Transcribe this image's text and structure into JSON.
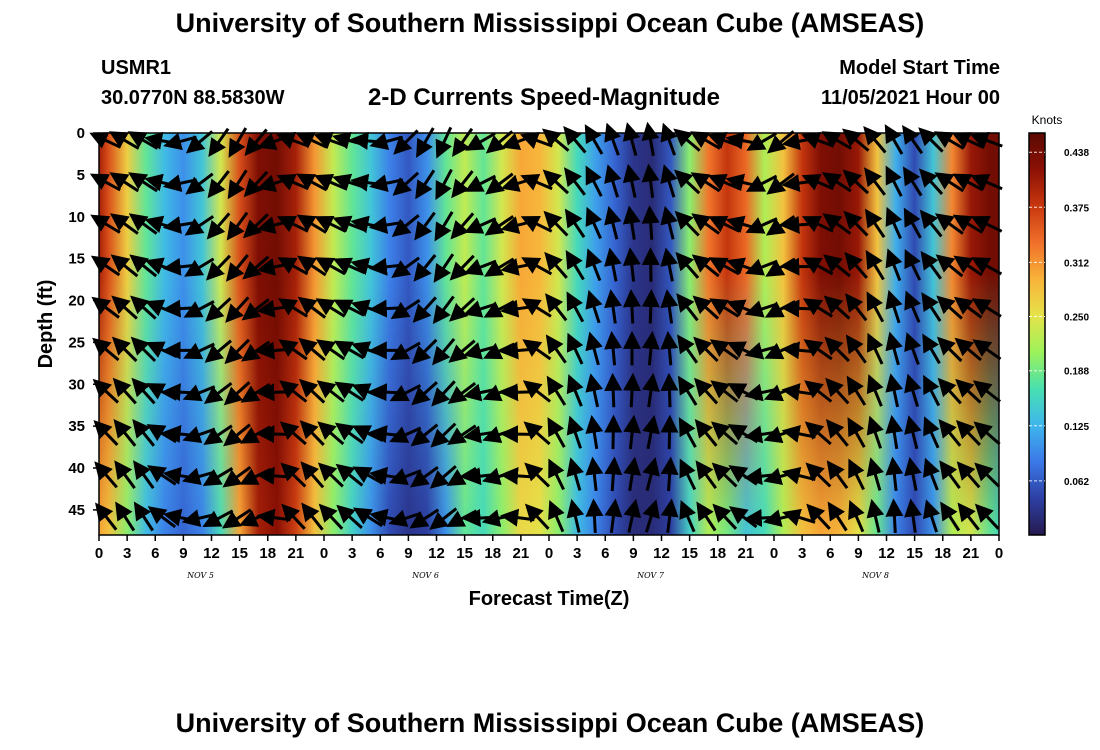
{
  "header": {
    "title": "University of Southern Mississippi Ocean Cube (AMSEAS)",
    "station_id": "USMR1",
    "coords": "30.0770N  88.5830W",
    "chart_title": "2-D Currents Speed-Magnitude",
    "model_start_label": "Model Start Time",
    "model_start_value": "11/05/2021 Hour 00"
  },
  "footer": {
    "title": "University of Southern Mississippi Ocean Cube (AMSEAS)"
  },
  "chart_data": {
    "type": "heatmap",
    "title": "2-D Currents Speed-Magnitude",
    "xlabel": "Forecast Time(Z)",
    "ylabel": "Depth (ft)",
    "x_tick_labels": [
      "0",
      "3",
      "6",
      "9",
      "12",
      "15",
      "18",
      "21",
      "0",
      "3",
      "6",
      "9",
      "12",
      "15",
      "18",
      "21",
      "0",
      "3",
      "6",
      "9",
      "12",
      "15",
      "18",
      "21",
      "0",
      "3",
      "6",
      "9",
      "12",
      "15",
      "18",
      "21",
      "0"
    ],
    "day_labels": [
      "NOV 5",
      "NOV 6",
      "NOV 7",
      "NOV 8"
    ],
    "y_tick_labels": [
      "0",
      "5",
      "10",
      "15",
      "20",
      "25",
      "30",
      "35",
      "40",
      "45"
    ],
    "y_ticks": [
      0,
      5,
      10,
      15,
      20,
      25,
      30,
      35,
      40,
      45
    ],
    "ylim": [
      48,
      0
    ],
    "xlim_hours": [
      0,
      96
    ],
    "colorbar": {
      "unit": "Knots",
      "range": [
        0.0,
        0.46
      ],
      "tick_labels": [
        "0.438",
        "0.375",
        "0.312",
        "0.250",
        "0.188",
        "0.125",
        "0.062"
      ],
      "tick_values": [
        0.438,
        0.375,
        0.312,
        0.25,
        0.188,
        0.125,
        0.062
      ],
      "colormap": [
        "#251a4f",
        "#2d3fa3",
        "#3b78e8",
        "#3fb6ec",
        "#48e0b0",
        "#9cf25a",
        "#e6e34a",
        "#f8b33a",
        "#f0702a",
        "#c8380f",
        "#8c1005",
        "#5a0a02"
      ]
    },
    "speed_profile": {
      "hours": [
        0,
        1,
        3,
        5,
        7,
        9,
        11,
        13,
        15,
        17,
        19,
        21,
        23,
        25,
        27,
        29,
        31,
        33,
        35,
        37,
        39,
        41,
        43,
        45,
        47,
        49,
        51,
        53,
        55,
        57,
        59,
        61,
        63,
        65,
        67,
        69,
        71,
        73,
        75,
        77,
        79,
        81,
        83,
        85,
        87,
        89,
        91,
        93,
        95,
        96
      ],
      "surface_knots": [
        0.4,
        0.36,
        0.27,
        0.18,
        0.13,
        0.1,
        0.14,
        0.24,
        0.36,
        0.43,
        0.44,
        0.4,
        0.31,
        0.23,
        0.18,
        0.14,
        0.09,
        0.06,
        0.1,
        0.18,
        0.23,
        0.18,
        0.24,
        0.3,
        0.29,
        0.24,
        0.16,
        0.11,
        0.07,
        0.03,
        0.02,
        0.06,
        0.2,
        0.33,
        0.38,
        0.34,
        0.22,
        0.28,
        0.38,
        0.43,
        0.44,
        0.41,
        0.28,
        0.12,
        0.05,
        0.14,
        0.32,
        0.41,
        0.44,
        0.44
      ],
      "bottom_knots": [
        0.3,
        0.28,
        0.2,
        0.13,
        0.09,
        0.07,
        0.09,
        0.16,
        0.3,
        0.4,
        0.42,
        0.37,
        0.28,
        0.2,
        0.15,
        0.1,
        0.05,
        0.03,
        0.04,
        0.1,
        0.18,
        0.16,
        0.2,
        0.26,
        0.25,
        0.2,
        0.13,
        0.09,
        0.05,
        0.02,
        0.02,
        0.04,
        0.15,
        0.22,
        0.19,
        0.14,
        0.16,
        0.22,
        0.28,
        0.3,
        0.29,
        0.25,
        0.18,
        0.09,
        0.05,
        0.1,
        0.22,
        0.24,
        0.18,
        0.16
      ]
    },
    "vector_direction_deg": [
      295,
      300,
      300,
      280,
      255,
      230,
      215,
      210,
      220,
      250,
      290,
      295,
      290,
      285,
      275,
      255,
      225,
      210,
      205,
      215,
      240,
      230,
      250,
      290,
      300,
      310,
      320,
      330,
      340,
      345,
      350,
      340,
      310,
      300,
      290,
      280,
      240,
      230,
      260,
      290,
      300,
      310,
      320,
      330,
      325,
      315,
      300,
      295,
      290,
      290
    ]
  }
}
